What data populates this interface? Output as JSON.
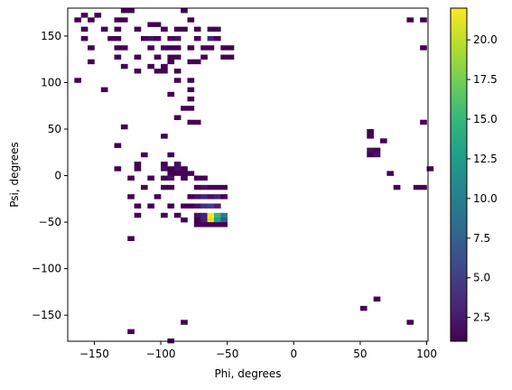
{
  "chart_data": {
    "type": "heatmap",
    "xlabel": "Phi, degrees",
    "ylabel": "Psi, degrees",
    "xlim": [
      -170,
      101
    ],
    "ylim": [
      -178,
      180
    ],
    "bin_size": 5,
    "x_ticks": [
      -150,
      -100,
      -50,
      0,
      50,
      100
    ],
    "y_ticks": [
      -150,
      -100,
      -50,
      0,
      50,
      100,
      150
    ],
    "colorbar": {
      "colormap": "viridis",
      "range": [
        1,
        22
      ],
      "ticks": [
        2.5,
        5.0,
        7.5,
        10.0,
        12.5,
        15.0,
        17.5,
        20.0
      ],
      "tick_labels": [
        "2.5",
        "5.0",
        "7.5",
        "10.0",
        "12.5",
        "15.0",
        "17.5",
        "20.0"
      ],
      "color_stops": [
        "#440154",
        "#482878",
        "#3e4989",
        "#31688e",
        "#26828e",
        "#1f9e89",
        "#35b779",
        "#6ece58",
        "#b5de2b",
        "#fde725"
      ]
    },
    "cells": [
      {
        "x": -160,
        "y": 175,
        "count": 1
      },
      {
        "x": -150,
        "y": 175,
        "count": 1
      },
      {
        "x": -130,
        "y": 180,
        "count": 1
      },
      {
        "x": -125,
        "y": 180,
        "count": 1
      },
      {
        "x": -85,
        "y": 180,
        "count": 1
      },
      {
        "x": -165,
        "y": 170,
        "count": 1
      },
      {
        "x": -155,
        "y": 170,
        "count": 1
      },
      {
        "x": -135,
        "y": 170,
        "count": 1
      },
      {
        "x": -130,
        "y": 170,
        "count": 1
      },
      {
        "x": -110,
        "y": 165,
        "count": 1
      },
      {
        "x": -105,
        "y": 165,
        "count": 1
      },
      {
        "x": -80,
        "y": 170,
        "count": 1
      },
      {
        "x": -160,
        "y": 160,
        "count": 1
      },
      {
        "x": -145,
        "y": 160,
        "count": 1
      },
      {
        "x": -135,
        "y": 160,
        "count": 1
      },
      {
        "x": -120,
        "y": 160,
        "count": 1
      },
      {
        "x": -100,
        "y": 160,
        "count": 1
      },
      {
        "x": -90,
        "y": 160,
        "count": 1
      },
      {
        "x": -85,
        "y": 160,
        "count": 1
      },
      {
        "x": -75,
        "y": 160,
        "count": 1
      },
      {
        "x": -65,
        "y": 160,
        "count": 1
      },
      {
        "x": -60,
        "y": 160,
        "count": 1
      },
      {
        "x": -160,
        "y": 150,
        "count": 1
      },
      {
        "x": -140,
        "y": 150,
        "count": 1
      },
      {
        "x": -135,
        "y": 150,
        "count": 1
      },
      {
        "x": -115,
        "y": 150,
        "count": 1
      },
      {
        "x": -110,
        "y": 150,
        "count": 2
      },
      {
        "x": -105,
        "y": 150,
        "count": 1
      },
      {
        "x": -95,
        "y": 150,
        "count": 1
      },
      {
        "x": -90,
        "y": 150,
        "count": 2
      },
      {
        "x": -75,
        "y": 150,
        "count": 1
      },
      {
        "x": -65,
        "y": 150,
        "count": 3
      },
      {
        "x": -60,
        "y": 150,
        "count": 1
      },
      {
        "x": -155,
        "y": 140,
        "count": 1
      },
      {
        "x": -135,
        "y": 140,
        "count": 1
      },
      {
        "x": -130,
        "y": 140,
        "count": 1
      },
      {
        "x": -110,
        "y": 140,
        "count": 1
      },
      {
        "x": -100,
        "y": 140,
        "count": 1
      },
      {
        "x": -95,
        "y": 140,
        "count": 1
      },
      {
        "x": -90,
        "y": 140,
        "count": 1
      },
      {
        "x": -80,
        "y": 140,
        "count": 1
      },
      {
        "x": -70,
        "y": 140,
        "count": 1
      },
      {
        "x": -65,
        "y": 140,
        "count": 1
      },
      {
        "x": -55,
        "y": 140,
        "count": 1
      },
      {
        "x": -50,
        "y": 140,
        "count": 1
      },
      {
        "x": -135,
        "y": 130,
        "count": 1
      },
      {
        "x": -120,
        "y": 130,
        "count": 1
      },
      {
        "x": -105,
        "y": 130,
        "count": 1
      },
      {
        "x": -95,
        "y": 130,
        "count": 1
      },
      {
        "x": -90,
        "y": 130,
        "count": 1
      },
      {
        "x": -70,
        "y": 130,
        "count": 1
      },
      {
        "x": -55,
        "y": 130,
        "count": 1
      },
      {
        "x": -50,
        "y": 130,
        "count": 1
      },
      {
        "x": -155,
        "y": 125,
        "count": 1
      },
      {
        "x": -130,
        "y": 120,
        "count": 1
      },
      {
        "x": -110,
        "y": 120,
        "count": 1
      },
      {
        "x": -100,
        "y": 120,
        "count": 1
      },
      {
        "x": -95,
        "y": 125,
        "count": 1
      },
      {
        "x": -80,
        "y": 125,
        "count": 1
      },
      {
        "x": -75,
        "y": 125,
        "count": 1
      },
      {
        "x": -120,
        "y": 115,
        "count": 1
      },
      {
        "x": -105,
        "y": 115,
        "count": 1
      },
      {
        "x": -100,
        "y": 115,
        "count": 1
      },
      {
        "x": -90,
        "y": 115,
        "count": 1
      },
      {
        "x": -165,
        "y": 105,
        "count": 1
      },
      {
        "x": -90,
        "y": 105,
        "count": 1
      },
      {
        "x": -80,
        "y": 105,
        "count": 1
      },
      {
        "x": -145,
        "y": 95,
        "count": 1
      },
      {
        "x": -95,
        "y": 90,
        "count": 1
      },
      {
        "x": -80,
        "y": 95,
        "count": 1
      },
      {
        "x": -80,
        "y": 85,
        "count": 1
      },
      {
        "x": -85,
        "y": 75,
        "count": 1
      },
      {
        "x": -80,
        "y": 75,
        "count": 1
      },
      {
        "x": -90,
        "y": 65,
        "count": 1
      },
      {
        "x": -80,
        "y": 60,
        "count": 1
      },
      {
        "x": -75,
        "y": 60,
        "count": 1
      },
      {
        "x": -130,
        "y": 55,
        "count": 1
      },
      {
        "x": -100,
        "y": 45,
        "count": 1
      },
      {
        "x": -135,
        "y": 35,
        "count": 1
      },
      {
        "x": -115,
        "y": 25,
        "count": 1
      },
      {
        "x": -95,
        "y": 25,
        "count": 1
      },
      {
        "x": -120,
        "y": 15,
        "count": 1
      },
      {
        "x": -135,
        "y": 10,
        "count": 1
      },
      {
        "x": -100,
        "y": 15,
        "count": 1
      },
      {
        "x": -95,
        "y": 10,
        "count": 1
      },
      {
        "x": -90,
        "y": 15,
        "count": 2
      },
      {
        "x": -85,
        "y": 10,
        "count": 1
      },
      {
        "x": -120,
        "y": 10,
        "count": 1
      },
      {
        "x": -100,
        "y": 10,
        "count": 2
      },
      {
        "x": -90,
        "y": 10,
        "count": 2
      },
      {
        "x": -95,
        "y": 5,
        "count": 1
      },
      {
        "x": -90,
        "y": 5,
        "count": 1
      },
      {
        "x": -85,
        "y": 5,
        "count": 1
      },
      {
        "x": -80,
        "y": 5,
        "count": 1
      },
      {
        "x": -125,
        "y": 0,
        "count": 1
      },
      {
        "x": -110,
        "y": 0,
        "count": 1
      },
      {
        "x": -100,
        "y": 0,
        "count": 1
      },
      {
        "x": -95,
        "y": 0,
        "count": 2
      },
      {
        "x": -85,
        "y": 0,
        "count": 1
      },
      {
        "x": -75,
        "y": 0,
        "count": 1
      },
      {
        "x": -70,
        "y": 0,
        "count": 1
      },
      {
        "x": -115,
        "y": -10,
        "count": 1
      },
      {
        "x": -100,
        "y": -10,
        "count": 1
      },
      {
        "x": -95,
        "y": -10,
        "count": 1
      },
      {
        "x": -75,
        "y": -10,
        "count": 1
      },
      {
        "x": -70,
        "y": -10,
        "count": 2
      },
      {
        "x": -65,
        "y": -10,
        "count": 1
      },
      {
        "x": -60,
        "y": -10,
        "count": 1
      },
      {
        "x": -55,
        "y": -10,
        "count": 1
      },
      {
        "x": -125,
        "y": -20,
        "count": 1
      },
      {
        "x": -105,
        "y": -20,
        "count": 1
      },
      {
        "x": -80,
        "y": -20,
        "count": 1
      },
      {
        "x": -75,
        "y": -20,
        "count": 2
      },
      {
        "x": -70,
        "y": -20,
        "count": 3
      },
      {
        "x": -65,
        "y": -20,
        "count": 2
      },
      {
        "x": -60,
        "y": -20,
        "count": 3
      },
      {
        "x": -55,
        "y": -20,
        "count": 1
      },
      {
        "x": -120,
        "y": -30,
        "count": 1
      },
      {
        "x": -110,
        "y": -30,
        "count": 1
      },
      {
        "x": -95,
        "y": -30,
        "count": 1
      },
      {
        "x": -85,
        "y": -30,
        "count": 1
      },
      {
        "x": -80,
        "y": -30,
        "count": 1
      },
      {
        "x": -75,
        "y": -30,
        "count": 2
      },
      {
        "x": -70,
        "y": -30,
        "count": 4
      },
      {
        "x": -65,
        "y": -30,
        "count": 5
      },
      {
        "x": -60,
        "y": -30,
        "count": 3
      },
      {
        "x": -120,
        "y": -40,
        "count": 1
      },
      {
        "x": -100,
        "y": -40,
        "count": 1
      },
      {
        "x": -90,
        "y": -40,
        "count": 1
      },
      {
        "x": -85,
        "y": -45,
        "count": 1
      },
      {
        "x": -75,
        "y": -40,
        "count": 2
      },
      {
        "x": -70,
        "y": -40,
        "count": 3
      },
      {
        "x": -65,
        "y": -40,
        "count": 22
      },
      {
        "x": -60,
        "y": -40,
        "count": 15
      },
      {
        "x": -55,
        "y": -40,
        "count": 10
      },
      {
        "x": -75,
        "y": -45,
        "count": 1
      },
      {
        "x": -70,
        "y": -45,
        "count": 3
      },
      {
        "x": -65,
        "y": -45,
        "count": 21
      },
      {
        "x": -60,
        "y": -45,
        "count": 13
      },
      {
        "x": -55,
        "y": -45,
        "count": 7
      },
      {
        "x": -75,
        "y": -50,
        "count": 1
      },
      {
        "x": -70,
        "y": -50,
        "count": 1
      },
      {
        "x": -65,
        "y": -50,
        "count": 1
      },
      {
        "x": -60,
        "y": -50,
        "count": 1
      },
      {
        "x": -55,
        "y": -50,
        "count": 1
      },
      {
        "x": -125,
        "y": -65,
        "count": 1
      },
      {
        "x": -125,
        "y": -165,
        "count": 1
      },
      {
        "x": -85,
        "y": -155,
        "count": 1
      },
      {
        "x": -95,
        "y": -175,
        "count": 1
      },
      {
        "x": 85,
        "y": 170,
        "count": 1
      },
      {
        "x": 95,
        "y": 170,
        "count": 1
      },
      {
        "x": 95,
        "y": 140,
        "count": 1
      },
      {
        "x": 95,
        "y": 60,
        "count": 1
      },
      {
        "x": 55,
        "y": 50,
        "count": 1
      },
      {
        "x": 55,
        "y": 45,
        "count": 1
      },
      {
        "x": 65,
        "y": 40,
        "count": 1
      },
      {
        "x": 55,
        "y": 30,
        "count": 2
      },
      {
        "x": 60,
        "y": 30,
        "count": 1
      },
      {
        "x": 55,
        "y": 25,
        "count": 1
      },
      {
        "x": 60,
        "y": 25,
        "count": 2
      },
      {
        "x": 70,
        "y": 5,
        "count": 1
      },
      {
        "x": 100,
        "y": 10,
        "count": 1
      },
      {
        "x": 75,
        "y": -10,
        "count": 1
      },
      {
        "x": 90,
        "y": -10,
        "count": 1
      },
      {
        "x": 95,
        "y": -10,
        "count": 1
      },
      {
        "x": 60,
        "y": -130,
        "count": 1
      },
      {
        "x": 50,
        "y": -140,
        "count": 1
      },
      {
        "x": 85,
        "y": -155,
        "count": 1
      }
    ]
  }
}
